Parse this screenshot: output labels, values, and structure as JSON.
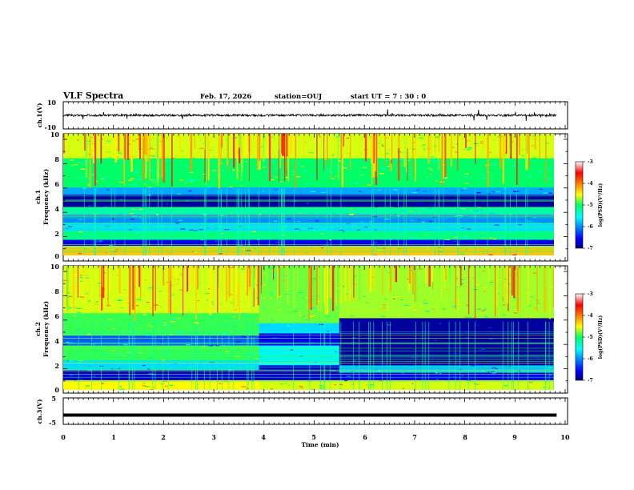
{
  "header": {
    "title": "VLF Spectra",
    "date": "Feb. 17, 2026",
    "station": "station=OUJ",
    "start": "start UT =  7 : 30 : 0"
  },
  "chart_data": [
    {
      "id": "ch1-waveform",
      "type": "line",
      "ylabel": "ch.1(V)",
      "ylim": [
        -10,
        10
      ],
      "yticks": [
        "10",
        "-10"
      ],
      "xlim": [
        0,
        9.83
      ],
      "baseline": 0,
      "color": "#000000"
    },
    {
      "id": "ch1-spectrogram",
      "type": "heatmap",
      "ylabel": [
        "ch.1",
        "Frequency  (kHz)"
      ],
      "ylim": [
        0,
        10
      ],
      "yticks": [
        "0",
        "2",
        "4",
        "6",
        "8",
        "10"
      ],
      "xlim": [
        0,
        9.83
      ],
      "bands": [
        {
          "from": 0,
          "to": 0.8,
          "level": -4.3
        },
        {
          "from": 0.8,
          "to": 1.3,
          "level": -6.6
        },
        {
          "from": 1.3,
          "to": 2.0,
          "level": -5.1
        },
        {
          "from": 2.0,
          "to": 2.7,
          "level": -5.7
        },
        {
          "from": 2.7,
          "to": 3.4,
          "level": -6.0
        },
        {
          "from": 3.4,
          "to": 4.0,
          "level": -5.2
        },
        {
          "from": 4.0,
          "to": 5.0,
          "level": -6.9
        },
        {
          "from": 5.0,
          "to": 5.6,
          "level": -5.9
        },
        {
          "from": 5.6,
          "to": 8.0,
          "level": -5.0
        },
        {
          "from": 8.0,
          "to": 10.0,
          "level": -4.6
        }
      ]
    },
    {
      "id": "ch2-spectrogram",
      "type": "heatmap",
      "ylabel": [
        "ch.2",
        "Frequency  (kHz)"
      ],
      "ylim": [
        0,
        10
      ],
      "yticks": [
        "0",
        "2",
        "4",
        "6",
        "8",
        "10"
      ],
      "xlim": [
        0,
        9.83
      ],
      "segments": [
        {
          "t0": 0,
          "t1": 3.9,
          "bands": [
            {
              "from": 0,
              "to": 0.8,
              "level": -4.5
            },
            {
              "from": 0.8,
              "to": 1.6,
              "level": -6.7
            },
            {
              "from": 1.6,
              "to": 2.4,
              "level": -5.7
            },
            {
              "from": 2.4,
              "to": 3.6,
              "level": -4.9
            },
            {
              "from": 3.6,
              "to": 4.4,
              "level": -6.2
            },
            {
              "from": 4.4,
              "to": 6.2,
              "level": -4.9
            },
            {
              "from": 6.2,
              "to": 10.0,
              "level": -4.6
            }
          ]
        },
        {
          "t0": 3.9,
          "t1": 5.5,
          "bands": [
            {
              "from": 0,
              "to": 0.8,
              "level": -4.6
            },
            {
              "from": 0.8,
              "to": 2.0,
              "level": -6.7
            },
            {
              "from": 2.0,
              "to": 3.6,
              "level": -5.6
            },
            {
              "from": 3.6,
              "to": 4.6,
              "level": -6.6
            },
            {
              "from": 4.6,
              "to": 5.4,
              "level": -5.7
            },
            {
              "from": 5.4,
              "to": 10.0,
              "level": -4.8
            }
          ]
        },
        {
          "t0": 5.5,
          "t1": 9.83,
          "bands": [
            {
              "from": 0,
              "to": 0.8,
              "level": -4.6
            },
            {
              "from": 0.8,
              "to": 1.4,
              "level": -6.6
            },
            {
              "from": 1.4,
              "to": 2.0,
              "level": -5.8
            },
            {
              "from": 2.0,
              "to": 5.8,
              "level": -6.9
            },
            {
              "from": 5.8,
              "to": 10.0,
              "level": -4.7
            }
          ]
        }
      ]
    },
    {
      "id": "ch3-waveform",
      "type": "line",
      "ylabel": "ch.3(V)",
      "ylim": [
        -5,
        5
      ],
      "yticks": [
        "5",
        "-5"
      ],
      "xlim": [
        0,
        9.83
      ],
      "baseline": -1.5,
      "color": "#000000"
    }
  ],
  "x_axis": {
    "label": "Time  (min)",
    "range": [
      0,
      10
    ],
    "ticks": [
      "0",
      "1",
      "2",
      "3",
      "4",
      "5",
      "6",
      "7",
      "8",
      "9",
      "10"
    ]
  },
  "colorbar": {
    "label": "log(PSD)(V²/Hz)",
    "range": [
      -7,
      -3
    ],
    "ticks": [
      "-3",
      "-4",
      "-5",
      "-6",
      "-7"
    ]
  }
}
